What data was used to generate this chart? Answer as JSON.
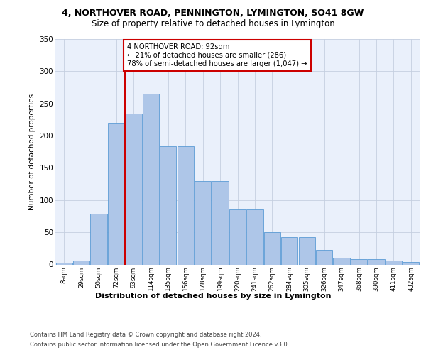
{
  "title1": "4, NORTHOVER ROAD, PENNINGTON, LYMINGTON, SO41 8GW",
  "title2": "Size of property relative to detached houses in Lymington",
  "xlabel": "Distribution of detached houses by size in Lymington",
  "ylabel": "Number of detached properties",
  "bin_labels": [
    "8sqm",
    "29sqm",
    "50sqm",
    "72sqm",
    "93sqm",
    "114sqm",
    "135sqm",
    "156sqm",
    "178sqm",
    "199sqm",
    "220sqm",
    "241sqm",
    "262sqm",
    "284sqm",
    "305sqm",
    "326sqm",
    "347sqm",
    "368sqm",
    "390sqm",
    "411sqm",
    "432sqm"
  ],
  "bar_heights": [
    3,
    6,
    79,
    220,
    234,
    265,
    184,
    184,
    130,
    130,
    85,
    85,
    50,
    42,
    42,
    23,
    11,
    8,
    8,
    6,
    4
  ],
  "bar_color": "#aec6e8",
  "bar_edge_color": "#5b9bd5",
  "background_color": "#eaf0fb",
  "red_line_index": 4,
  "annotation_text": "4 NORTHOVER ROAD: 92sqm\n← 21% of detached houses are smaller (286)\n78% of semi-detached houses are larger (1,047) →",
  "annotation_box_color": "#ffffff",
  "annotation_box_edge": "#cc0000",
  "footer1": "Contains HM Land Registry data © Crown copyright and database right 2024.",
  "footer2": "Contains public sector information licensed under the Open Government Licence v3.0.",
  "ylim": [
    0,
    350
  ],
  "yticks": [
    0,
    50,
    100,
    150,
    200,
    250,
    300,
    350
  ]
}
